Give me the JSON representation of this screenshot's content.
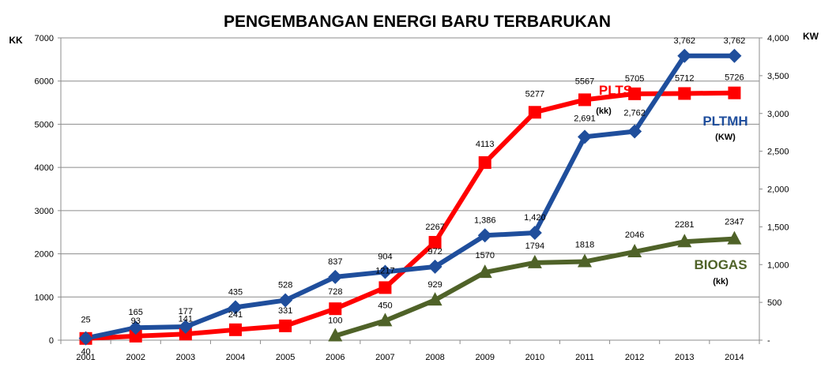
{
  "chart_data": {
    "type": "line",
    "title": "PENGEMBANGAN ENERGI BARU TERBARUKAN",
    "ylabel": "KK",
    "y2label": "KW",
    "ylim": [
      0,
      7000
    ],
    "y2lim": [
      0,
      4000
    ],
    "yticks": [
      "0",
      "1000",
      "2000",
      "3000",
      "4000",
      "5000",
      "6000",
      "7000"
    ],
    "y2ticks": [
      "-",
      "500",
      "1,000",
      "1,500",
      "2,000",
      "2,500",
      "3,000",
      "3,500",
      "4,000"
    ],
    "grid": true,
    "categories": [
      "2001",
      "2002",
      "2003",
      "2004",
      "2005",
      "2006",
      "2007",
      "2008",
      "2009",
      "2010",
      "2011",
      "2012",
      "2013",
      "2014"
    ],
    "series": [
      {
        "name": "PLTS",
        "unit": "(kk)",
        "axis": "left",
        "color": "#ff0000",
        "marker": "square",
        "values": [
          40,
          93,
          141,
          241,
          331,
          728,
          1217,
          2267,
          4113,
          5277,
          5567,
          5705,
          5712,
          5726
        ],
        "labels": [
          "40",
          "93",
          "141",
          "241",
          "331",
          "728",
          "1217",
          "2267",
          "4113",
          "5277",
          "5567",
          "5705",
          "5712",
          "5726"
        ]
      },
      {
        "name": "PLTMH",
        "unit": "(KW)",
        "axis": "right",
        "color": "#1f4e9c",
        "marker": "diamond",
        "values": [
          25,
          165,
          177,
          435,
          528,
          837,
          904,
          972,
          1386,
          1420,
          2691,
          2762,
          3762,
          3762
        ],
        "labels": [
          "25",
          "165",
          "177",
          "435",
          "528",
          "837",
          "904",
          "972",
          "1,386",
          "1,420",
          "2,691",
          "2,762",
          "3,762",
          "3,762"
        ]
      },
      {
        "name": "BIOGAS",
        "unit": "(kk)",
        "axis": "left",
        "color": "#4f6228",
        "marker": "triangle",
        "values": [
          null,
          null,
          null,
          null,
          null,
          100,
          450,
          929,
          1570,
          1794,
          1818,
          2046,
          2281,
          2347
        ],
        "labels": [
          null,
          null,
          null,
          null,
          null,
          "100",
          "450",
          "929",
          "1570",
          "1794",
          "1818",
          "2046",
          "2281",
          "2347"
        ]
      }
    ]
  }
}
